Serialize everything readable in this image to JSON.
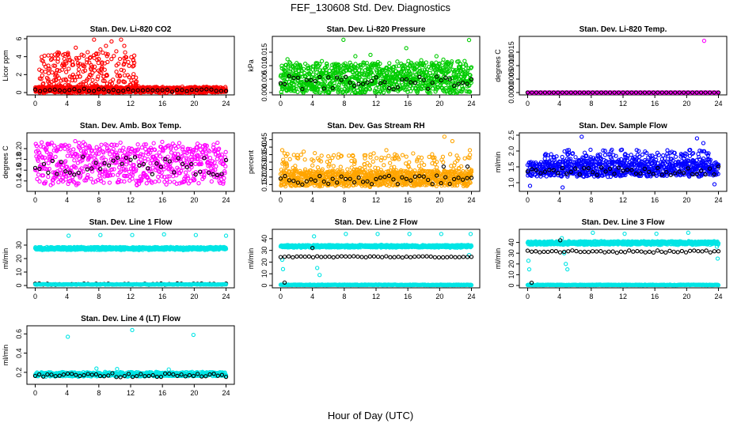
{
  "figure": {
    "title": "FEF_130608  Std. Dev. Diagnostics",
    "xlabel": "Hour of Day (UTC)"
  },
  "chart_data": [
    {
      "type": "scatter",
      "title": "Stan. Dev. Li-820 CO2",
      "ylabel": "Licor ppm",
      "xlim": [
        0,
        24
      ],
      "ylim": [
        0,
        6
      ],
      "xticks": [
        "0",
        "4",
        "8",
        "12",
        "16",
        "20",
        "24"
      ],
      "yticks": [
        "0",
        "2",
        "4",
        "6"
      ],
      "grid": false,
      "series": [
        {
          "color": "#ff0000",
          "noise": {
            "kind": "band",
            "n": 900,
            "xmax": 24,
            "lo": 0.0,
            "hi": 0.6,
            "spread": 0.15
          },
          "extra": {
            "n": 260,
            "xmin": 0.5,
            "xmax": 13,
            "lo": 0.5,
            "hi": 4.5
          },
          "outliers": [
            [
              3.5,
              4.2
            ],
            [
              4.4,
              3.6
            ],
            [
              5.1,
              5.0
            ],
            [
              6.6,
              4.5
            ],
            [
              7.4,
              5.9
            ],
            [
              8.2,
              4.8
            ],
            [
              8.9,
              5.2
            ],
            [
              9.6,
              5.7
            ],
            [
              10.2,
              4.6
            ],
            [
              10.8,
              5.9
            ],
            [
              11.2,
              5.2
            ],
            [
              11.7,
              3.4
            ],
            [
              12.4,
              3.0
            ],
            [
              6.0,
              3.1
            ],
            [
              2.8,
              2.5
            ]
          ]
        },
        {
          "color": "#000000",
          "noise": {
            "kind": "band",
            "n": 40,
            "xmax": 24,
            "lo": 0.1,
            "hi": 0.4,
            "spread": 0.05
          }
        }
      ]
    },
    {
      "type": "scatter",
      "title": "Stan. Dev. Li-820 Pressure",
      "ylabel": "kPa",
      "xlim": [
        0,
        24
      ],
      "ylim": [
        0,
        0.02
      ],
      "xticks": [
        "0",
        "4",
        "8",
        "12",
        "16",
        "20",
        "24"
      ],
      "yticks": [
        "0.000",
        "0.005",
        "0.010",
        "0.015"
      ],
      "grid": false,
      "series": [
        {
          "color": "#00cc00",
          "noise": {
            "kind": "band",
            "n": 1000,
            "xmax": 24,
            "lo": 0.0,
            "hi": 0.011,
            "spread": 0.002
          },
          "outliers": [
            [
              7.9,
              0.0196
            ],
            [
              23.7,
              0.0195
            ],
            [
              15.8,
              0.0165
            ],
            [
              11.3,
              0.014
            ],
            [
              9.4,
              0.0135
            ],
            [
              19.6,
              0.0135
            ]
          ]
        },
        {
          "color": "#000000",
          "noise": {
            "kind": "band",
            "n": 45,
            "xmax": 24,
            "lo": 0.001,
            "hi": 0.006,
            "spread": 0.001
          }
        }
      ]
    },
    {
      "type": "scatter",
      "title": "Stan. Dev. Li-820 Temp.",
      "ylabel": "degrees C",
      "xlim": [
        0,
        24
      ],
      "ylim": [
        0,
        0.002
      ],
      "xticks": [
        "0",
        "4",
        "8",
        "12",
        "16",
        "20",
        "24"
      ],
      "yticks": [
        "0.0000",
        "0.0005",
        "0.0010",
        "0.0015"
      ],
      "grid": false,
      "series": [
        {
          "color": "#ff00ff",
          "noise": {
            "kind": "band",
            "n": 500,
            "xmax": 24,
            "lo": 0.0,
            "hi": 0.0,
            "spread": 0.0
          },
          "outliers": [
            [
              22.2,
              0.00192
            ]
          ]
        },
        {
          "color": "#000000",
          "noise": {
            "kind": "band",
            "n": 45,
            "xmax": 24,
            "lo": 0.0,
            "hi": 0.0,
            "spread": 0.0
          }
        }
      ]
    },
    {
      "type": "scatter",
      "title": "Stan. Dev. Amb. Box Temp.",
      "ylabel": "degrees C",
      "xlim": [
        0,
        24
      ],
      "ylim": [
        0.125,
        0.225
      ],
      "xticks": [
        "0",
        "4",
        "8",
        "12",
        "16",
        "20",
        "24"
      ],
      "yticks": [
        "0.14",
        "0.16",
        "0.18",
        "0.20"
      ],
      "grid": false,
      "series": [
        {
          "color": "#ff00ff",
          "noise": {
            "kind": "band",
            "n": 650,
            "xmax": 24,
            "lo": 0.135,
            "hi": 0.21,
            "spread": 0.008
          }
        },
        {
          "color": "#000000",
          "noise": {
            "kind": "band",
            "n": 45,
            "xmax": 24,
            "lo": 0.15,
            "hi": 0.185,
            "spread": 0.004
          }
        }
      ]
    },
    {
      "type": "scatter",
      "title": "Stan. Dev. Gas Stream RH",
      "ylabel": "percent",
      "xlim": [
        0,
        24
      ],
      "ylim": [
        0.12,
        0.48
      ],
      "xticks": [
        "0",
        "4",
        "8",
        "12",
        "16",
        "20",
        "24"
      ],
      "yticks": [
        "0.15",
        "0.20",
        "0.25",
        "0.30",
        "0.35",
        "0.40",
        "0.45"
      ],
      "grid": false,
      "series": [
        {
          "color": "#ffa500",
          "noise": {
            "kind": "band",
            "n": 900,
            "xmax": 24,
            "lo": 0.14,
            "hi": 0.24,
            "spread": 0.01
          },
          "extra": {
            "n": 160,
            "xmin": 0,
            "xmax": 24,
            "lo": 0.24,
            "hi": 0.36
          },
          "outliers": [
            [
              0.2,
              0.38
            ],
            [
              2.9,
              0.37
            ],
            [
              4.3,
              0.36
            ],
            [
              9.1,
              0.34
            ],
            [
              11.3,
              0.35
            ],
            [
              13.3,
              0.38
            ],
            [
              14.6,
              0.345
            ],
            [
              20.6,
              0.47
            ],
            [
              21.6,
              0.44
            ],
            [
              23.8,
              0.38
            ]
          ]
        },
        {
          "color": "#000000",
          "noise": {
            "kind": "band",
            "n": 45,
            "xmax": 24,
            "lo": 0.15,
            "hi": 0.21,
            "spread": 0.006
          },
          "outliers": [
            [
              20.5,
              0.27
            ],
            [
              23.5,
              0.27
            ]
          ]
        }
      ]
    },
    {
      "type": "scatter",
      "title": "Stan. Dev. Sample Flow",
      "ylabel": "ml/min",
      "xlim": [
        0,
        24
      ],
      "ylim": [
        0.8,
        2.5
      ],
      "xticks": [
        "0",
        "4",
        "8",
        "12",
        "16",
        "20",
        "24"
      ],
      "yticks": [
        "1.0",
        "1.5",
        "2.0",
        "2.5"
      ],
      "grid": false,
      "series": [
        {
          "color": "#0000ff",
          "noise": {
            "kind": "band",
            "n": 700,
            "xmax": 24,
            "lo": 1.2,
            "hi": 1.65,
            "spread": 0.05
          },
          "extra": {
            "n": 200,
            "xmin": 2,
            "xmax": 23,
            "lo": 1.65,
            "hi": 2.05
          },
          "outliers": [
            [
              0.3,
              0.9
            ],
            [
              4.4,
              0.85
            ],
            [
              6.8,
              2.45
            ],
            [
              21.3,
              2.4
            ],
            [
              22.1,
              2.25
            ],
            [
              23.5,
              0.95
            ]
          ]
        },
        {
          "color": "#000000",
          "noise": {
            "kind": "band",
            "n": 45,
            "xmax": 24,
            "lo": 1.25,
            "hi": 1.5,
            "spread": 0.03
          }
        }
      ]
    },
    {
      "type": "scatter",
      "title": "Stan. Dev. Line 1 Flow",
      "ylabel": "ml/min",
      "xlim": [
        0,
        24
      ],
      "ylim": [
        0,
        40
      ],
      "xticks": [
        "0",
        "4",
        "8",
        "12",
        "16",
        "20",
        "24"
      ],
      "yticks": [
        "0",
        "10",
        "20",
        "30"
      ],
      "grid": false,
      "series": [
        {
          "color": "#00e5e5",
          "noise": {
            "kind": "band",
            "n": 700,
            "xmax": 24,
            "lo": 26.5,
            "hi": 28.5,
            "spread": 0.4
          },
          "outliers": [
            [
              4.2,
              37
            ],
            [
              8.2,
              37.5
            ],
            [
              12.2,
              37.5
            ],
            [
              16.2,
              38
            ],
            [
              20.2,
              37.5
            ],
            [
              24,
              37
            ]
          ]
        },
        {
          "color": "#000000",
          "noise": {
            "kind": "band",
            "n": 48,
            "xmax": 24,
            "lo": 0.5,
            "hi": 1.5,
            "spread": 0.1
          }
        },
        {
          "color": "#00e5e5",
          "noise": {
            "kind": "band",
            "n": 200,
            "xmax": 24,
            "lo": 0.6,
            "hi": 1.0,
            "spread": 0.1
          }
        }
      ]
    },
    {
      "type": "scatter",
      "title": "Stan. Dev. Line 2 Flow",
      "ylabel": "ml/min",
      "xlim": [
        0,
        24
      ],
      "ylim": [
        0,
        46
      ],
      "xticks": [
        "0",
        "4",
        "8",
        "12",
        "16",
        "20",
        "24"
      ],
      "yticks": [
        "0",
        "10",
        "20",
        "30",
        "40"
      ],
      "grid": false,
      "series": [
        {
          "color": "#00e5e5",
          "noise": {
            "kind": "band",
            "n": 700,
            "xmax": 24,
            "lo": 32.5,
            "hi": 34.5,
            "spread": 0.4
          },
          "outliers": [
            [
              0.2,
              22
            ],
            [
              0.3,
              14
            ],
            [
              4.2,
              42
            ],
            [
              4.6,
              15
            ],
            [
              4.9,
              9
            ],
            [
              8.2,
              44
            ],
            [
              12.2,
              44
            ],
            [
              16.2,
              44
            ],
            [
              20.2,
              44
            ],
            [
              23.9,
              44
            ],
            [
              23.7,
              26
            ]
          ]
        },
        {
          "color": "#00e5e5",
          "noise": {
            "kind": "band",
            "n": 300,
            "xmax": 24,
            "lo": 0.3,
            "hi": 0.8,
            "spread": 0.1
          }
        },
        {
          "color": "#000000",
          "noise": {
            "kind": "band",
            "n": 48,
            "xmax": 24,
            "lo": 24,
            "hi": 25,
            "spread": 0.3
          },
          "outliers": [
            [
              0.5,
              2.5
            ],
            [
              4.0,
              32
            ]
          ]
        }
      ]
    },
    {
      "type": "scatter",
      "title": "Stan. Dev. Line 3 Flow",
      "ylabel": "ml/min",
      "xlim": [
        0,
        24
      ],
      "ylim": [
        0,
        50
      ],
      "xticks": [
        "0",
        "4",
        "8",
        "12",
        "16",
        "20",
        "24"
      ],
      "yticks": [
        "0",
        "10",
        "20",
        "30",
        "40"
      ],
      "grid": false,
      "series": [
        {
          "color": "#00e5e5",
          "noise": {
            "kind": "band",
            "n": 700,
            "xmax": 24,
            "lo": 38,
            "hi": 41,
            "spread": 0.5
          },
          "outliers": [
            [
              0.1,
              23
            ],
            [
              0.2,
              15
            ],
            [
              4.3,
              44
            ],
            [
              4.6,
              30
            ],
            [
              4.8,
              20
            ],
            [
              5.0,
              15
            ],
            [
              8.2,
              49
            ],
            [
              12.2,
              48
            ],
            [
              16.2,
              48
            ],
            [
              20.2,
              49
            ],
            [
              23.8,
              36
            ],
            [
              23.9,
              25
            ]
          ]
        },
        {
          "color": "#00e5e5",
          "noise": {
            "kind": "band",
            "n": 300,
            "xmax": 24,
            "lo": 0.3,
            "hi": 0.8,
            "spread": 0.1
          }
        },
        {
          "color": "#000000",
          "noise": {
            "kind": "band",
            "n": 48,
            "xmax": 24,
            "lo": 30.5,
            "hi": 32.5,
            "spread": 0.3
          },
          "outliers": [
            [
              0.5,
              2.5
            ],
            [
              4.1,
              42
            ]
          ]
        }
      ]
    },
    {
      "type": "scatter",
      "title": "Stan. Dev. Line 4 (LT) Flow",
      "ylabel": "ml/min",
      "xlim": [
        0,
        24
      ],
      "ylim": [
        0.1,
        0.66
      ],
      "xticks": [
        "0",
        "4",
        "8",
        "12",
        "16",
        "20",
        "24"
      ],
      "yticks": [
        "0.2",
        "0.4",
        "0.6"
      ],
      "grid": false,
      "series": [
        {
          "color": "#00e5e5",
          "noise": {
            "kind": "band",
            "n": 700,
            "xmax": 24,
            "lo": 0.16,
            "hi": 0.2,
            "spread": 0.01
          },
          "outliers": [
            [
              4.1,
              0.57
            ],
            [
              12.2,
              0.64
            ],
            [
              19.9,
              0.59
            ],
            [
              7.7,
              0.24
            ],
            [
              10.3,
              0.235
            ],
            [
              16.8,
              0.23
            ]
          ]
        },
        {
          "color": "#000000",
          "noise": {
            "kind": "band",
            "n": 48,
            "xmax": 24,
            "lo": 0.15,
            "hi": 0.19,
            "spread": 0.006
          }
        }
      ]
    }
  ]
}
